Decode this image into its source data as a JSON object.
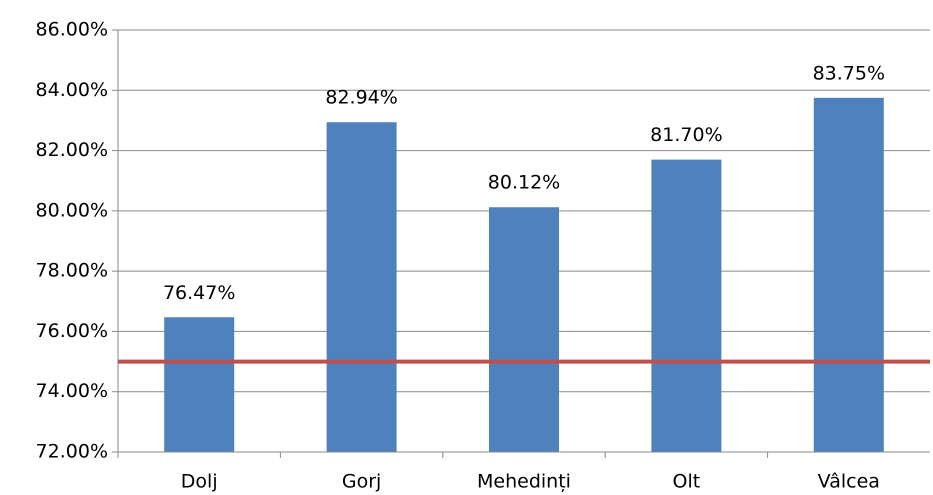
{
  "chart_data": {
    "type": "bar",
    "categories": [
      "Dolj",
      "Gorj",
      "Mehedinți",
      "Olt",
      "Vâlcea"
    ],
    "values": [
      76.47,
      82.94,
      80.12,
      81.7,
      83.75
    ],
    "value_labels": [
      "76.47%",
      "82.94%",
      "80.12%",
      "81.70%",
      "83.75%"
    ],
    "color": "#4f81bd",
    "ylim": [
      72,
      86
    ],
    "yticks": [
      {
        "value": 72,
        "label": "72.00%"
      },
      {
        "value": 74,
        "label": "74.00%"
      },
      {
        "value": 76,
        "label": "76.00%"
      },
      {
        "value": 78,
        "label": "78.00%"
      },
      {
        "value": 80,
        "label": "80.00%"
      },
      {
        "value": 82,
        "label": "82.00%"
      },
      {
        "value": 84,
        "label": "84.00%"
      },
      {
        "value": 86,
        "label": "86.00%"
      }
    ],
    "grid": true,
    "reference_line": {
      "value": 75,
      "color": "#c0504d"
    }
  }
}
